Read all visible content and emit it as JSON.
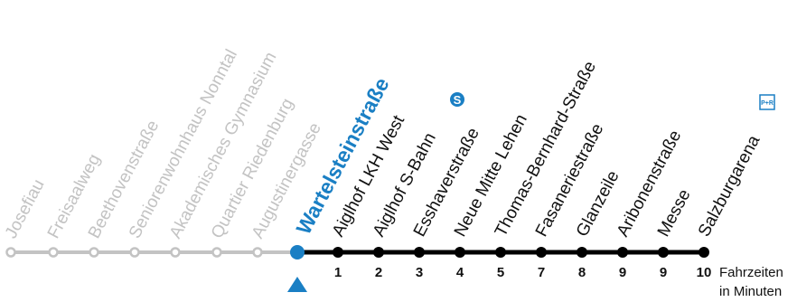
{
  "line_map": {
    "current_stop": "Wartelsteinstraße",
    "past_stops": [
      "Josefiau",
      "Freisaalweg",
      "Beethovenstraße",
      "Seniorenwohnhaus Nonntal",
      "Akademisches Gymnasium",
      "Quartier Riedenburg",
      "Augustinergasse"
    ],
    "next_stops": [
      {
        "name": "Aiglhof LKH West",
        "minutes": "1"
      },
      {
        "name": "Aiglhof S-Bahn",
        "minutes": "2",
        "badge": "s-bahn-icon"
      },
      {
        "name": "Esshaverstraße",
        "minutes": "3"
      },
      {
        "name": "Neue Mitte Lehen",
        "minutes": "4"
      },
      {
        "name": "Thomas-Bernhard-Straße",
        "minutes": "5"
      },
      {
        "name": "Fasaneriestraße",
        "minutes": "7"
      },
      {
        "name": "Glanzeile",
        "minutes": "8"
      },
      {
        "name": "Aribonenstraße",
        "minutes": "9"
      },
      {
        "name": "Messe",
        "minutes": "9"
      },
      {
        "name": "Salzburgarena",
        "minutes": "10",
        "badge": "park-and-ride-icon"
      }
    ],
    "legend_line1": "Fahrzeiten",
    "legend_line2": "in Minuten",
    "park_ride_label": "P+R",
    "colors": {
      "past": "#c3c3c3",
      "current": "#1a7fc4",
      "line": "#000000",
      "text": "#111111"
    }
  }
}
